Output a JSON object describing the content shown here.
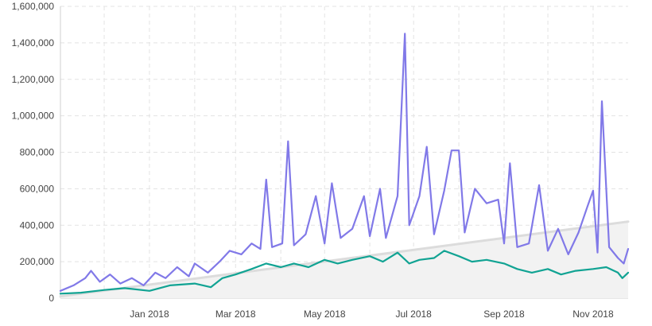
{
  "chart_data": {
    "type": "line",
    "title": "",
    "xlabel": "",
    "ylabel": "",
    "x_start": "2017-11-01",
    "x_end": "2018-11-25",
    "ylim": [
      0,
      1600000
    ],
    "y_ticks": [
      {
        "value": 0,
        "label": "0"
      },
      {
        "value": 200000,
        "label": "200,000"
      },
      {
        "value": 400000,
        "label": "400,000"
      },
      {
        "value": 600000,
        "label": "600,000"
      },
      {
        "value": 800000,
        "label": "800,000"
      },
      {
        "value": 1000000,
        "label": "1,000,000"
      },
      {
        "value": 1200000,
        "label": "1,200,000"
      },
      {
        "value": 1400000,
        "label": "1,400,000"
      },
      {
        "value": 1600000,
        "label": "1,600,000"
      }
    ],
    "x_ticks": [
      {
        "date": "2017-12-01",
        "label": ""
      },
      {
        "date": "2018-01-01",
        "label": "Jan 2018"
      },
      {
        "date": "2018-02-01",
        "label": ""
      },
      {
        "date": "2018-03-01",
        "label": "Mar 2018"
      },
      {
        "date": "2018-04-01",
        "label": ""
      },
      {
        "date": "2018-05-01",
        "label": "May 2018"
      },
      {
        "date": "2018-06-01",
        "label": ""
      },
      {
        "date": "2018-07-01",
        "label": "Jul 2018"
      },
      {
        "date": "2018-08-01",
        "label": ""
      },
      {
        "date": "2018-09-01",
        "label": "Sep 2018"
      },
      {
        "date": "2018-10-01",
        "label": ""
      },
      {
        "date": "2018-11-01",
        "label": "Nov 2018"
      }
    ],
    "grid": true,
    "legend": "none",
    "series": [
      {
        "color": "#8179e8",
        "points": [
          [
            "2017-11-01",
            40000
          ],
          [
            "2017-11-10",
            70000
          ],
          [
            "2017-11-18",
            110000
          ],
          [
            "2017-11-22",
            150000
          ],
          [
            "2017-11-28",
            90000
          ],
          [
            "2017-12-05",
            130000
          ],
          [
            "2017-12-12",
            80000
          ],
          [
            "2017-12-20",
            110000
          ],
          [
            "2017-12-28",
            70000
          ],
          [
            "2018-01-05",
            140000
          ],
          [
            "2018-01-12",
            110000
          ],
          [
            "2018-01-20",
            170000
          ],
          [
            "2018-01-28",
            120000
          ],
          [
            "2018-02-01",
            190000
          ],
          [
            "2018-02-10",
            140000
          ],
          [
            "2018-02-18",
            200000
          ],
          [
            "2018-02-25",
            260000
          ],
          [
            "2018-03-05",
            240000
          ],
          [
            "2018-03-12",
            300000
          ],
          [
            "2018-03-18",
            270000
          ],
          [
            "2018-03-22",
            650000
          ],
          [
            "2018-03-26",
            280000
          ],
          [
            "2018-04-02",
            300000
          ],
          [
            "2018-04-06",
            860000
          ],
          [
            "2018-04-10",
            290000
          ],
          [
            "2018-04-18",
            350000
          ],
          [
            "2018-04-25",
            560000
          ],
          [
            "2018-05-01",
            300000
          ],
          [
            "2018-05-06",
            630000
          ],
          [
            "2018-05-12",
            330000
          ],
          [
            "2018-05-20",
            380000
          ],
          [
            "2018-05-28",
            560000
          ],
          [
            "2018-06-01",
            340000
          ],
          [
            "2018-06-08",
            600000
          ],
          [
            "2018-06-12",
            330000
          ],
          [
            "2018-06-20",
            560000
          ],
          [
            "2018-06-25",
            1450000
          ],
          [
            "2018-06-28",
            400000
          ],
          [
            "2018-07-05",
            560000
          ],
          [
            "2018-07-10",
            830000
          ],
          [
            "2018-07-15",
            350000
          ],
          [
            "2018-07-22",
            590000
          ],
          [
            "2018-07-27",
            810000
          ],
          [
            "2018-08-01",
            810000
          ],
          [
            "2018-08-05",
            360000
          ],
          [
            "2018-08-12",
            600000
          ],
          [
            "2018-08-20",
            520000
          ],
          [
            "2018-08-28",
            540000
          ],
          [
            "2018-09-01",
            300000
          ],
          [
            "2018-09-05",
            740000
          ],
          [
            "2018-09-10",
            280000
          ],
          [
            "2018-09-18",
            300000
          ],
          [
            "2018-09-25",
            620000
          ],
          [
            "2018-10-01",
            260000
          ],
          [
            "2018-10-08",
            380000
          ],
          [
            "2018-10-15",
            240000
          ],
          [
            "2018-10-22",
            360000
          ],
          [
            "2018-10-28",
            500000
          ],
          [
            "2018-11-01",
            590000
          ],
          [
            "2018-11-04",
            250000
          ],
          [
            "2018-11-07",
            1080000
          ],
          [
            "2018-11-12",
            280000
          ],
          [
            "2018-11-18",
            220000
          ],
          [
            "2018-11-22",
            190000
          ],
          [
            "2018-11-25",
            270000
          ]
        ]
      },
      {
        "color": "#11a393",
        "points": [
          [
            "2017-11-01",
            25000
          ],
          [
            "2017-11-15",
            30000
          ],
          [
            "2017-12-01",
            45000
          ],
          [
            "2017-12-15",
            55000
          ],
          [
            "2018-01-01",
            40000
          ],
          [
            "2018-01-15",
            70000
          ],
          [
            "2018-02-01",
            80000
          ],
          [
            "2018-02-12",
            60000
          ],
          [
            "2018-02-20",
            110000
          ],
          [
            "2018-03-01",
            130000
          ],
          [
            "2018-03-12",
            160000
          ],
          [
            "2018-03-22",
            190000
          ],
          [
            "2018-04-01",
            170000
          ],
          [
            "2018-04-10",
            190000
          ],
          [
            "2018-04-20",
            170000
          ],
          [
            "2018-05-01",
            210000
          ],
          [
            "2018-05-10",
            190000
          ],
          [
            "2018-05-20",
            210000
          ],
          [
            "2018-06-01",
            230000
          ],
          [
            "2018-06-10",
            200000
          ],
          [
            "2018-06-20",
            250000
          ],
          [
            "2018-06-28",
            190000
          ],
          [
            "2018-07-05",
            210000
          ],
          [
            "2018-07-15",
            220000
          ],
          [
            "2018-07-22",
            260000
          ],
          [
            "2018-08-01",
            230000
          ],
          [
            "2018-08-10",
            200000
          ],
          [
            "2018-08-20",
            210000
          ],
          [
            "2018-09-01",
            190000
          ],
          [
            "2018-09-10",
            160000
          ],
          [
            "2018-09-20",
            140000
          ],
          [
            "2018-10-01",
            160000
          ],
          [
            "2018-10-10",
            130000
          ],
          [
            "2018-10-20",
            150000
          ],
          [
            "2018-11-01",
            160000
          ],
          [
            "2018-11-10",
            170000
          ],
          [
            "2018-11-18",
            140000
          ],
          [
            "2018-11-21",
            110000
          ],
          [
            "2018-11-25",
            140000
          ]
        ]
      },
      {
        "color": "#dcdcdc",
        "fill": "#f2f2f2",
        "points": [
          [
            "2017-11-01",
            10000
          ],
          [
            "2018-11-25",
            420000
          ]
        ]
      }
    ]
  }
}
